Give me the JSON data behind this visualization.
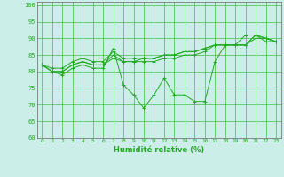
{
  "xlabel": "Humidité relative (%)",
  "background_color": "#cceee8",
  "grid_color": "#44bb44",
  "line_color": "#22aa22",
  "xlim": [
    -0.5,
    23.5
  ],
  "ylim": [
    60,
    101
  ],
  "yticks": [
    60,
    65,
    70,
    75,
    80,
    85,
    90,
    95,
    100
  ],
  "xticks": [
    0,
    1,
    2,
    3,
    4,
    5,
    6,
    7,
    8,
    9,
    10,
    11,
    12,
    13,
    14,
    15,
    16,
    17,
    18,
    19,
    20,
    21,
    22,
    23
  ],
  "series": [
    [
      82,
      81,
      81,
      83,
      84,
      83,
      83,
      86,
      84,
      84,
      84,
      84,
      85,
      85,
      86,
      86,
      87,
      88,
      88,
      88,
      88,
      91,
      89,
      89
    ],
    [
      82,
      80,
      80,
      82,
      83,
      82,
      82,
      85,
      83,
      83,
      84,
      84,
      85,
      85,
      86,
      86,
      87,
      88,
      88,
      88,
      88,
      91,
      90,
      89
    ],
    [
      82,
      80,
      80,
      82,
      83,
      82,
      82,
      84,
      83,
      83,
      83,
      83,
      84,
      84,
      85,
      85,
      86,
      88,
      88,
      88,
      88,
      90,
      90,
      89
    ],
    [
      82,
      80,
      79,
      81,
      82,
      81,
      81,
      87,
      76,
      73,
      69,
      73,
      78,
      73,
      73,
      71,
      71,
      83,
      88,
      88,
      91,
      91,
      90,
      89
    ]
  ]
}
